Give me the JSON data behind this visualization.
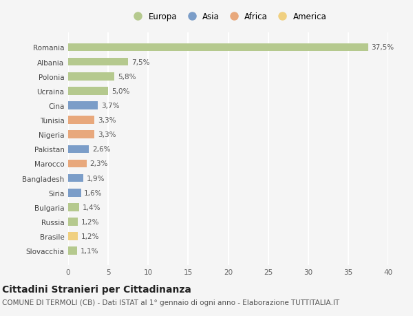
{
  "countries": [
    "Romania",
    "Albania",
    "Polonia",
    "Ucraina",
    "Cina",
    "Tunisia",
    "Nigeria",
    "Pakistan",
    "Marocco",
    "Bangladesh",
    "Siria",
    "Bulgaria",
    "Russia",
    "Brasile",
    "Slovacchia"
  ],
  "values": [
    37.5,
    7.5,
    5.8,
    5.0,
    3.7,
    3.3,
    3.3,
    2.6,
    2.3,
    1.9,
    1.6,
    1.4,
    1.2,
    1.2,
    1.1
  ],
  "labels": [
    "37,5%",
    "7,5%",
    "5,8%",
    "5,0%",
    "3,7%",
    "3,3%",
    "3,3%",
    "2,6%",
    "2,3%",
    "1,9%",
    "1,6%",
    "1,4%",
    "1,2%",
    "1,2%",
    "1,1%"
  ],
  "continents": [
    "Europa",
    "Europa",
    "Europa",
    "Europa",
    "Asia",
    "Africa",
    "Africa",
    "Asia",
    "Africa",
    "Asia",
    "Asia",
    "Europa",
    "Europa",
    "America",
    "Europa"
  ],
  "continent_colors": {
    "Europa": "#b5c98e",
    "Asia": "#7b9dc8",
    "Africa": "#e8a87c",
    "America": "#f0d080"
  },
  "legend_order": [
    "Europa",
    "Asia",
    "Africa",
    "America"
  ],
  "legend_colors": [
    "#b5c98e",
    "#7b9dc8",
    "#e8a87c",
    "#f0d080"
  ],
  "xlim": [
    0,
    40
  ],
  "xticks": [
    0,
    5,
    10,
    15,
    20,
    25,
    30,
    35,
    40
  ],
  "background_color": "#f5f5f5",
  "grid_color": "#ffffff",
  "title": "Cittadini Stranieri per Cittadinanza",
  "subtitle": "COMUNE DI TERMOLI (CB) - Dati ISTAT al 1° gennaio di ogni anno - Elaborazione TUTTITALIA.IT",
  "bar_height": 0.55,
  "label_fontsize": 7.5,
  "tick_fontsize": 7.5,
  "title_fontsize": 10,
  "subtitle_fontsize": 7.5
}
